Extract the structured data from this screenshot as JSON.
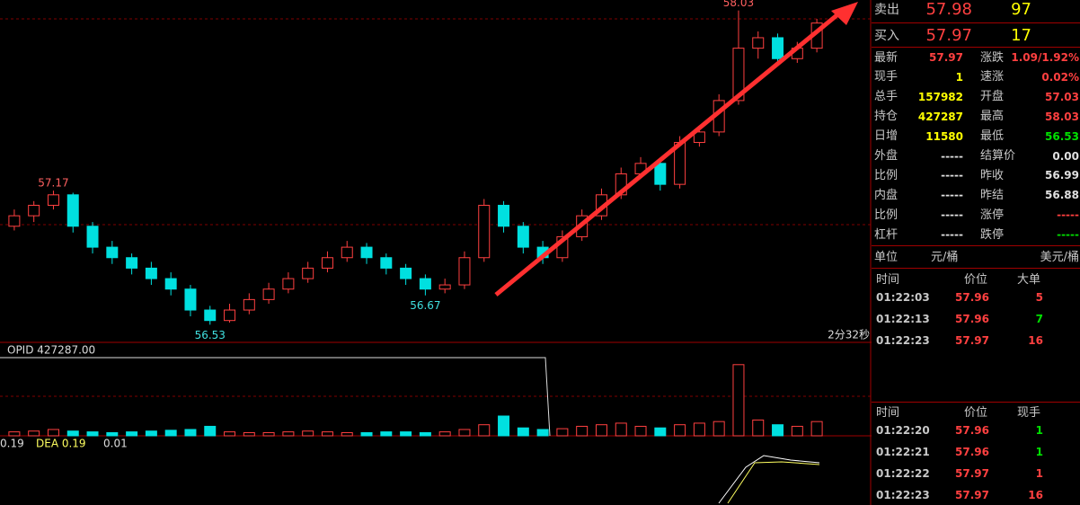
{
  "chart_data": {
    "type": "candlestick",
    "ylim": [
      56.45,
      58.08
    ],
    "candles": [
      [
        57.0,
        57.08,
        56.98,
        57.05
      ],
      [
        57.05,
        57.12,
        57.02,
        57.1
      ],
      [
        57.1,
        57.17,
        57.08,
        57.15
      ],
      [
        57.15,
        57.16,
        56.97,
        57.0
      ],
      [
        57.0,
        57.02,
        56.87,
        56.9
      ],
      [
        56.9,
        56.93,
        56.82,
        56.85
      ],
      [
        56.85,
        56.87,
        56.77,
        56.8
      ],
      [
        56.8,
        56.83,
        56.72,
        56.75
      ],
      [
        56.75,
        56.78,
        56.67,
        56.7
      ],
      [
        56.7,
        56.72,
        56.57,
        56.6
      ],
      [
        56.6,
        56.62,
        56.53,
        56.55
      ],
      [
        56.55,
        56.63,
        56.54,
        56.6
      ],
      [
        56.6,
        56.68,
        56.58,
        56.65
      ],
      [
        56.65,
        56.73,
        56.63,
        56.7
      ],
      [
        56.7,
        56.78,
        56.68,
        56.75
      ],
      [
        56.75,
        56.83,
        56.73,
        56.8
      ],
      [
        56.8,
        56.88,
        56.78,
        56.85
      ],
      [
        56.85,
        56.93,
        56.83,
        56.9
      ],
      [
        56.9,
        56.92,
        56.82,
        56.85
      ],
      [
        56.85,
        56.87,
        56.77,
        56.8
      ],
      [
        56.8,
        56.82,
        56.72,
        56.75
      ],
      [
        56.75,
        56.77,
        56.67,
        56.7
      ],
      [
        56.7,
        56.75,
        56.68,
        56.72
      ],
      [
        56.72,
        56.88,
        56.7,
        56.85
      ],
      [
        56.85,
        57.13,
        56.83,
        57.1
      ],
      [
        57.1,
        57.12,
        56.97,
        57.0
      ],
      [
        57.0,
        57.02,
        56.87,
        56.9
      ],
      [
        56.9,
        56.93,
        56.82,
        56.85
      ],
      [
        56.85,
        56.98,
        56.83,
        56.95
      ],
      [
        56.95,
        57.08,
        56.93,
        57.05
      ],
      [
        57.05,
        57.18,
        57.03,
        57.15
      ],
      [
        57.15,
        57.28,
        57.13,
        57.25
      ],
      [
        57.25,
        57.33,
        57.23,
        57.3
      ],
      [
        57.3,
        57.32,
        57.17,
        57.2
      ],
      [
        57.2,
        57.43,
        57.18,
        57.4
      ],
      [
        57.4,
        57.48,
        57.38,
        57.45
      ],
      [
        57.45,
        57.63,
        57.43,
        57.6
      ],
      [
        57.6,
        58.03,
        57.58,
        57.85
      ],
      [
        57.85,
        57.93,
        57.8,
        57.9
      ],
      [
        57.9,
        57.92,
        57.77,
        57.8
      ],
      [
        57.8,
        57.88,
        57.78,
        57.85
      ],
      [
        57.85,
        57.99,
        57.83,
        57.97
      ]
    ],
    "up_color": "#ff4040",
    "down_color": "#00e0e0",
    "high_label": "58.03",
    "low_label": "56.53",
    "left_high_label": "57.17",
    "mid_low_label": "56.67",
    "countdown": "2分32秒",
    "volume": [
      5,
      6,
      8,
      6,
      5,
      4,
      5,
      6,
      7,
      8,
      12,
      5,
      4,
      4,
      5,
      6,
      5,
      4,
      4,
      5,
      5,
      4,
      5,
      8,
      14,
      25,
      10,
      8,
      9,
      12,
      14,
      16,
      12,
      10,
      14,
      16,
      18,
      90,
      20,
      14,
      12,
      18
    ],
    "volume_ylim": [
      0,
      100
    ],
    "opid_label": "OPID 427287.00",
    "macd_labels": [
      "0.19",
      "DEA 0.19",
      "0.01"
    ]
  },
  "panel": {
    "sell": {
      "label": "卖出",
      "price": "57.98",
      "qty": "97"
    },
    "buy": {
      "label": "买入",
      "price": "57.97",
      "qty": "17"
    },
    "quote": [
      [
        "最新",
        "57.97",
        "涨跌",
        "1.09/1.92%"
      ],
      [
        "现手",
        "1",
        "速涨",
        "0.02%"
      ],
      [
        "总手",
        "157982",
        "开盘",
        "57.03"
      ],
      [
        "持仓",
        "427287",
        "最高",
        "58.03"
      ],
      [
        "日增",
        "11580",
        "最低",
        "56.53"
      ],
      [
        "外盘",
        "-----",
        "结算价",
        "0.00"
      ],
      [
        "比例",
        "-----",
        "昨收",
        "56.99"
      ],
      [
        "内盘",
        "-----",
        "昨结",
        "56.88"
      ],
      [
        "比例",
        "-----",
        "涨停",
        "-----"
      ],
      [
        "杠杆",
        "-----",
        "跌停",
        "-----"
      ]
    ],
    "unit": [
      "单位",
      "元/桶",
      "美元/桶"
    ],
    "big_header": [
      "时间",
      "价位",
      "大单"
    ],
    "big_rows": [
      [
        "01:22:03",
        "57.96",
        "5"
      ],
      [
        "01:22:13",
        "57.96",
        "7"
      ],
      [
        "01:22:23",
        "57.97",
        "16"
      ]
    ],
    "tick_header": [
      "时间",
      "价位",
      "现手"
    ],
    "tick_rows": [
      [
        "01:22:20",
        "57.96",
        "1"
      ],
      [
        "01:22:21",
        "57.96",
        "1"
      ],
      [
        "01:22:22",
        "57.97",
        "1"
      ],
      [
        "01:22:23",
        "57.97",
        "16"
      ]
    ]
  }
}
